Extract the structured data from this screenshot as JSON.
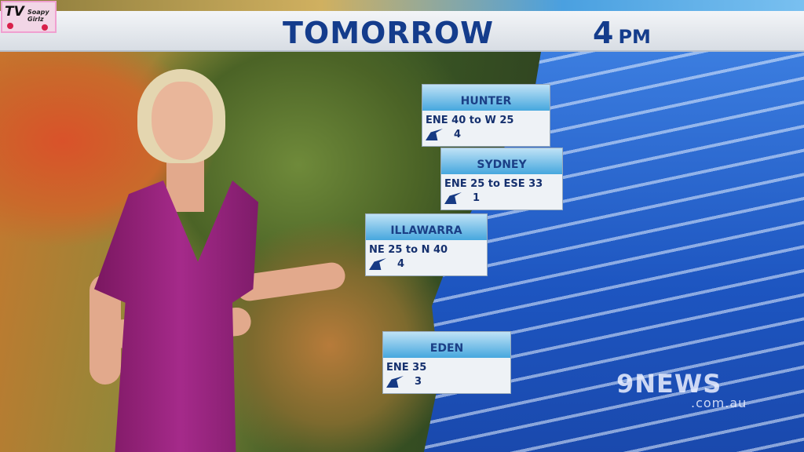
{
  "banner": {
    "title": "TOMORROW",
    "time_hour": "4",
    "time_period": "PM"
  },
  "logo": {
    "tv": "TV",
    "text": "Soapy Girlz"
  },
  "regions": [
    {
      "name": "HUNTER",
      "wind": "ENE 40 to W 25",
      "swell": "4"
    },
    {
      "name": "SYDNEY",
      "wind": "ENE 25 to ESE 33",
      "swell": "1"
    },
    {
      "name": "ILLAWARRA",
      "wind": "NE 25 to N 40",
      "swell": "4"
    },
    {
      "name": "EDEN",
      "wind": "ENE 35",
      "swell": "3"
    }
  ],
  "watermark": {
    "brand": "9NEWS",
    "domain": ".com.au"
  },
  "colors": {
    "banner_text": "#143c8c",
    "ocean": "#1d55c0",
    "dress": "#a52a8a"
  }
}
